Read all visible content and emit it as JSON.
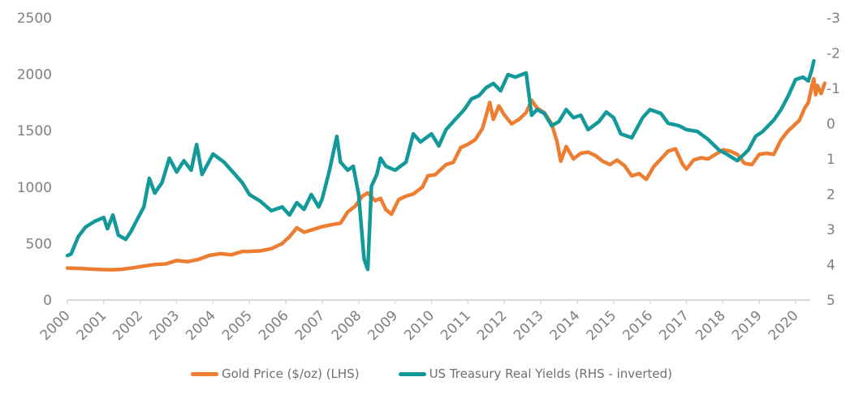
{
  "chart_data": {
    "type": "line",
    "title": "",
    "xlabel": "",
    "ylabel_left": "",
    "ylabel_right": "",
    "x_ticks": [
      "2000",
      "2001",
      "2002",
      "2003",
      "2004",
      "2005",
      "2006",
      "2007",
      "2008",
      "2009",
      "2010",
      "2011",
      "2012",
      "2013",
      "2014",
      "2015",
      "2016",
      "2017",
      "2018",
      "2019",
      "2020"
    ],
    "y_left": {
      "range": [
        0,
        2500
      ],
      "ticks": [
        "0",
        "500",
        "1000",
        "1500",
        "2000",
        "2500"
      ]
    },
    "y_right": {
      "range": [
        -3,
        5
      ],
      "inverted": true,
      "ticks": [
        "-3",
        "-2",
        "-1",
        "0",
        "1",
        "2",
        "3",
        "4",
        "5"
      ]
    },
    "xlim": [
      2000,
      2020.6
    ],
    "grid": false,
    "legend_position": "bottom",
    "colors": {
      "gold": "#ed7d31",
      "yields": "#13999a",
      "axis": "#d9d9d9",
      "text": "#7f7f7f"
    },
    "series": [
      {
        "name": "Gold Price ($/oz) (LHS)",
        "axis": "left",
        "points": [
          [
            2000.0,
            283
          ],
          [
            2000.3,
            280
          ],
          [
            2000.6,
            275
          ],
          [
            2000.9,
            270
          ],
          [
            2001.2,
            268
          ],
          [
            2001.5,
            272
          ],
          [
            2001.8,
            285
          ],
          [
            2002.1,
            300
          ],
          [
            2002.4,
            315
          ],
          [
            2002.7,
            320
          ],
          [
            2003.0,
            350
          ],
          [
            2003.3,
            340
          ],
          [
            2003.6,
            360
          ],
          [
            2003.9,
            395
          ],
          [
            2004.2,
            410
          ],
          [
            2004.5,
            400
          ],
          [
            2004.8,
            430
          ],
          [
            2005.0,
            430
          ],
          [
            2005.3,
            435
          ],
          [
            2005.6,
            455
          ],
          [
            2005.9,
            500
          ],
          [
            2006.1,
            560
          ],
          [
            2006.3,
            640
          ],
          [
            2006.5,
            600
          ],
          [
            2006.7,
            620
          ],
          [
            2007.0,
            650
          ],
          [
            2007.3,
            670
          ],
          [
            2007.5,
            680
          ],
          [
            2007.7,
            780
          ],
          [
            2007.9,
            830
          ],
          [
            2008.1,
            920
          ],
          [
            2008.25,
            950
          ],
          [
            2008.45,
            880
          ],
          [
            2008.6,
            900
          ],
          [
            2008.75,
            800
          ],
          [
            2008.9,
            760
          ],
          [
            2009.1,
            890
          ],
          [
            2009.3,
            920
          ],
          [
            2009.5,
            940
          ],
          [
            2009.75,
            1000
          ],
          [
            2009.9,
            1100
          ],
          [
            2010.1,
            1110
          ],
          [
            2010.4,
            1200
          ],
          [
            2010.6,
            1220
          ],
          [
            2010.8,
            1350
          ],
          [
            2011.0,
            1380
          ],
          [
            2011.2,
            1420
          ],
          [
            2011.4,
            1520
          ],
          [
            2011.6,
            1750
          ],
          [
            2011.7,
            1600
          ],
          [
            2011.85,
            1720
          ],
          [
            2012.0,
            1640
          ],
          [
            2012.2,
            1560
          ],
          [
            2012.4,
            1600
          ],
          [
            2012.6,
            1660
          ],
          [
            2012.75,
            1770
          ],
          [
            2012.9,
            1700
          ],
          [
            2013.1,
            1660
          ],
          [
            2013.3,
            1560
          ],
          [
            2013.45,
            1400
          ],
          [
            2013.55,
            1230
          ],
          [
            2013.7,
            1360
          ],
          [
            2013.9,
            1250
          ],
          [
            2014.1,
            1300
          ],
          [
            2014.3,
            1310
          ],
          [
            2014.5,
            1280
          ],
          [
            2014.7,
            1230
          ],
          [
            2014.9,
            1200
          ],
          [
            2015.1,
            1240
          ],
          [
            2015.3,
            1190
          ],
          [
            2015.5,
            1100
          ],
          [
            2015.7,
            1120
          ],
          [
            2015.9,
            1070
          ],
          [
            2016.1,
            1180
          ],
          [
            2016.3,
            1250
          ],
          [
            2016.5,
            1320
          ],
          [
            2016.7,
            1340
          ],
          [
            2016.9,
            1200
          ],
          [
            2017.0,
            1160
          ],
          [
            2017.2,
            1240
          ],
          [
            2017.4,
            1260
          ],
          [
            2017.6,
            1250
          ],
          [
            2017.8,
            1290
          ],
          [
            2018.0,
            1330
          ],
          [
            2018.2,
            1320
          ],
          [
            2018.4,
            1290
          ],
          [
            2018.6,
            1210
          ],
          [
            2018.8,
            1200
          ],
          [
            2019.0,
            1290
          ],
          [
            2019.2,
            1300
          ],
          [
            2019.4,
            1290
          ],
          [
            2019.6,
            1420
          ],
          [
            2019.8,
            1500
          ],
          [
            2020.0,
            1560
          ],
          [
            2020.1,
            1590
          ],
          [
            2020.25,
            1700
          ],
          [
            2020.35,
            1750
          ],
          [
            2020.45,
            1900
          ],
          [
            2020.5,
            1960
          ],
          [
            2020.55,
            1820
          ],
          [
            2020.6,
            1900
          ],
          [
            2020.7,
            1830
          ],
          [
            2020.8,
            1920
          ]
        ]
      },
      {
        "name": "US Treasury Real Yields (RHS - inverted)",
        "axis": "right",
        "points": [
          [
            2000.0,
            3.74
          ],
          [
            2000.1,
            3.7
          ],
          [
            2000.3,
            3.2
          ],
          [
            2000.5,
            2.93
          ],
          [
            2000.75,
            2.77
          ],
          [
            2001.0,
            2.66
          ],
          [
            2001.1,
            2.98
          ],
          [
            2001.25,
            2.59
          ],
          [
            2001.4,
            3.16
          ],
          [
            2001.6,
            3.28
          ],
          [
            2001.75,
            3.05
          ],
          [
            2001.9,
            2.75
          ],
          [
            2002.1,
            2.36
          ],
          [
            2002.25,
            1.55
          ],
          [
            2002.4,
            1.97
          ],
          [
            2002.6,
            1.67
          ],
          [
            2002.8,
            0.98
          ],
          [
            2003.0,
            1.37
          ],
          [
            2003.2,
            1.05
          ],
          [
            2003.4,
            1.32
          ],
          [
            2003.55,
            0.59
          ],
          [
            2003.7,
            1.44
          ],
          [
            2004.0,
            0.86
          ],
          [
            2004.3,
            1.09
          ],
          [
            2004.5,
            1.32
          ],
          [
            2004.8,
            1.67
          ],
          [
            2005.0,
            2.01
          ],
          [
            2005.3,
            2.2
          ],
          [
            2005.6,
            2.47
          ],
          [
            2005.9,
            2.36
          ],
          [
            2006.1,
            2.59
          ],
          [
            2006.3,
            2.24
          ],
          [
            2006.5,
            2.43
          ],
          [
            2006.7,
            2.01
          ],
          [
            2006.9,
            2.36
          ],
          [
            2007.0,
            2.13
          ],
          [
            2007.2,
            1.32
          ],
          [
            2007.4,
            0.36
          ],
          [
            2007.5,
            1.09
          ],
          [
            2007.7,
            1.32
          ],
          [
            2007.85,
            1.21
          ],
          [
            2008.0,
            2.01
          ],
          [
            2008.15,
            3.85
          ],
          [
            2008.25,
            4.13
          ],
          [
            2008.35,
            1.78
          ],
          [
            2008.5,
            1.44
          ],
          [
            2008.6,
            0.98
          ],
          [
            2008.75,
            1.21
          ],
          [
            2009.0,
            1.32
          ],
          [
            2009.3,
            1.09
          ],
          [
            2009.5,
            0.29
          ],
          [
            2009.7,
            0.52
          ],
          [
            2010.0,
            0.29
          ],
          [
            2010.2,
            0.63
          ],
          [
            2010.4,
            0.17
          ],
          [
            2010.6,
            -0.06
          ],
          [
            2010.9,
            -0.4
          ],
          [
            2011.1,
            -0.7
          ],
          [
            2011.3,
            -0.79
          ],
          [
            2011.5,
            -1.02
          ],
          [
            2011.7,
            -1.14
          ],
          [
            2011.9,
            -0.93
          ],
          [
            2012.1,
            -1.39
          ],
          [
            2012.3,
            -1.32
          ],
          [
            2012.6,
            -1.44
          ],
          [
            2012.75,
            -0.24
          ],
          [
            2012.9,
            -0.4
          ],
          [
            2013.1,
            -0.29
          ],
          [
            2013.3,
            0.06
          ],
          [
            2013.5,
            -0.06
          ],
          [
            2013.7,
            -0.4
          ],
          [
            2013.9,
            -0.17
          ],
          [
            2014.1,
            -0.24
          ],
          [
            2014.3,
            0.17
          ],
          [
            2014.6,
            -0.06
          ],
          [
            2014.8,
            -0.33
          ],
          [
            2015.0,
            -0.17
          ],
          [
            2015.2,
            0.29
          ],
          [
            2015.5,
            0.4
          ],
          [
            2015.8,
            -0.17
          ],
          [
            2016.0,
            -0.4
          ],
          [
            2016.3,
            -0.29
          ],
          [
            2016.5,
            -0.01
          ],
          [
            2016.8,
            0.06
          ],
          [
            2017.0,
            0.17
          ],
          [
            2017.3,
            0.22
          ],
          [
            2017.6,
            0.45
          ],
          [
            2017.9,
            0.75
          ],
          [
            2018.1,
            0.86
          ],
          [
            2018.4,
            1.05
          ],
          [
            2018.7,
            0.75
          ],
          [
            2018.9,
            0.36
          ],
          [
            2019.1,
            0.22
          ],
          [
            2019.4,
            -0.1
          ],
          [
            2019.6,
            -0.4
          ],
          [
            2019.8,
            -0.79
          ],
          [
            2020.0,
            -1.25
          ],
          [
            2020.2,
            -1.32
          ],
          [
            2020.35,
            -1.21
          ],
          [
            2020.45,
            -1.55
          ],
          [
            2020.5,
            -1.78
          ]
        ]
      }
    ]
  },
  "legend": {
    "gold_label": "Gold Price ($/oz) (LHS)",
    "yields_label": "US Treasury Real Yields (RHS - inverted)"
  }
}
